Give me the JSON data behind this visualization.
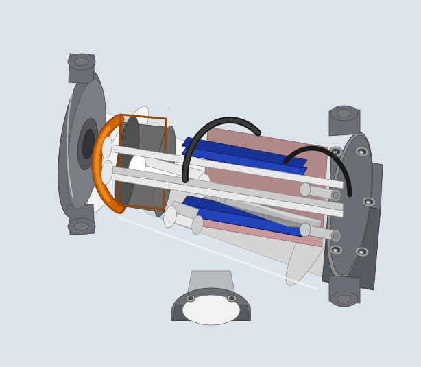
{
  "background_color": "#dce3ea",
  "figsize": [
    6.14,
    5.35
  ],
  "dpi": 100,
  "colors": {
    "light_gray": "#e8e8e8",
    "mid_gray": "#b0b4b8",
    "dark_gray": "#6a6e75",
    "darker_gray": "#555a60",
    "white_body": "#f2f2f2",
    "white_highlight": "#ffffff",
    "blue_magnet": "#2244bb",
    "blue_dark": "#1a3399",
    "orange_coil": "#cc6600",
    "orange_dark": "#994400",
    "pink_housing": "#b08888",
    "silver": "#c8cacb",
    "silver_dark": "#9a9c9e",
    "inner_white": "#e8e8e8",
    "coil_dark": "#505050",
    "coil_mid": "#6a6a6a",
    "bolt_face": "#aaaaaa",
    "bolt_hole": "#444444",
    "black_oring": "#1a1a1a",
    "gear_gray": "#aaaaaa",
    "body_shade": "#d4d4d4",
    "top_flange": "#b8bcbf"
  }
}
